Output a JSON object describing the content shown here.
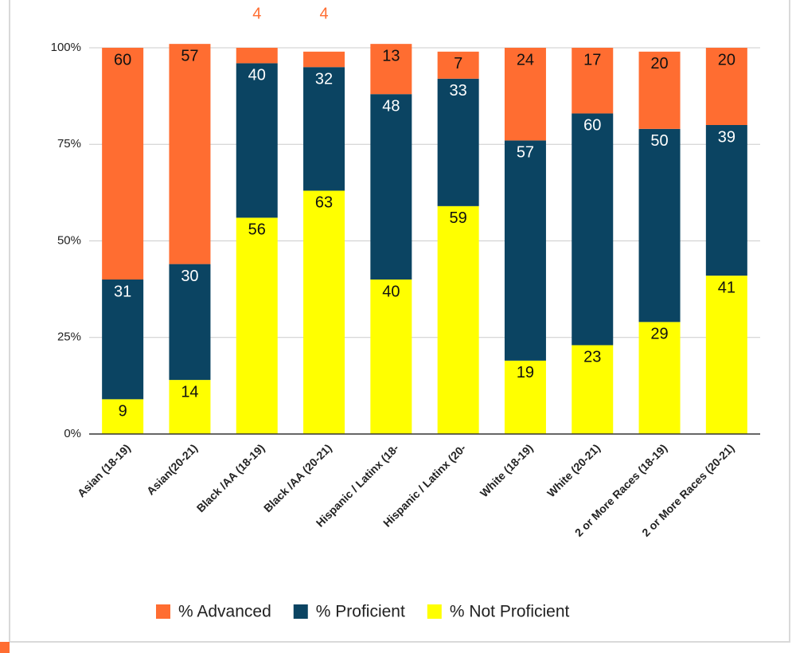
{
  "chart_data": {
    "type": "stacked_bar",
    "categories": [
      "Asian (18-19)",
      "Asian(20-21)",
      "Black /AA (18-19)",
      "Black /AA (20-21)",
      "Hispanic / Latinx (18-",
      "Hispanic / Latinx (20-",
      "White (18-19)",
      "White (20-21)",
      "2 or More Races (18-19)",
      "2 or More Races (20-21)"
    ],
    "series": [
      {
        "name": "% Advanced",
        "color": "#ff6d31",
        "values": [
          60,
          57,
          4,
          4,
          13,
          7,
          24,
          17,
          20,
          20
        ]
      },
      {
        "name": "% Proficient",
        "color": "#0b4462",
        "values": [
          31,
          30,
          40,
          32,
          48,
          33,
          57,
          60,
          50,
          39
        ]
      },
      {
        "name": "% Not Proficient",
        "color": "#ffff00",
        "values": [
          9,
          14,
          56,
          63,
          40,
          59,
          19,
          23,
          29,
          41
        ]
      }
    ],
    "ylim": [
      0,
      100
    ],
    "yticks": [
      {
        "value": 0,
        "label": "0%"
      },
      {
        "value": 25,
        "label": "25%"
      },
      {
        "value": 50,
        "label": "50%"
      },
      {
        "value": 75,
        "label": "75%"
      },
      {
        "value": 100,
        "label": "100%"
      }
    ],
    "grid": true,
    "legend": "bottom"
  }
}
